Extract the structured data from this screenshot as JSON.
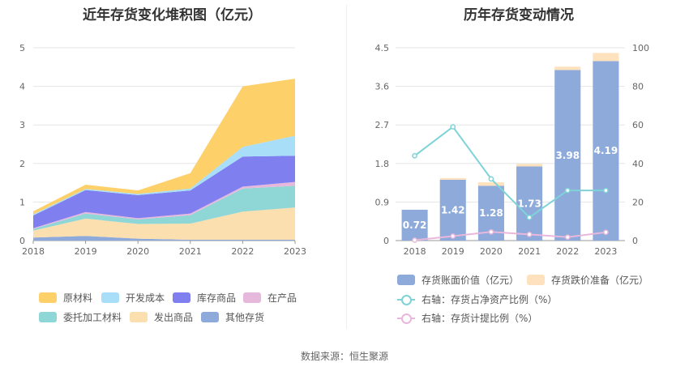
{
  "source": "数据来源：恒生聚源",
  "chart_data": [
    {
      "type": "area",
      "stacked": true,
      "title": "近年存货变化堆积图（亿元）",
      "x": [
        "2018",
        "2019",
        "2020",
        "2021",
        "2022",
        "2023"
      ],
      "ylim": [
        0,
        5
      ],
      "yticks": [
        0,
        1,
        2,
        3,
        4,
        5
      ],
      "grid": true,
      "legend_position": "bottom",
      "series": [
        {
          "name": "其他存货",
          "color": "#8eaadb",
          "values": [
            0.08,
            0.12,
            0.05,
            0.02,
            0.02,
            0.02
          ]
        },
        {
          "name": "发出商品",
          "color": "#fbdfae",
          "values": [
            0.18,
            0.45,
            0.38,
            0.42,
            0.73,
            0.84
          ]
        },
        {
          "name": "委托加工材料",
          "color": "#8fd6d6",
          "values": [
            0.04,
            0.13,
            0.12,
            0.22,
            0.6,
            0.56
          ]
        },
        {
          "name": "在产品",
          "color": "#e6b8dc",
          "values": [
            0.02,
            0.04,
            0.03,
            0.04,
            0.05,
            0.1
          ]
        },
        {
          "name": "库存商品",
          "color": "#7f7ff0",
          "values": [
            0.33,
            0.57,
            0.6,
            0.6,
            0.78,
            0.68
          ]
        },
        {
          "name": "开发成本",
          "color": "#a8def8",
          "values": [
            0.03,
            0.03,
            0.03,
            0.05,
            0.25,
            0.52
          ]
        },
        {
          "name": "原材料",
          "color": "#fdd06a",
          "values": [
            0.08,
            0.11,
            0.09,
            0.4,
            1.57,
            1.48
          ]
        }
      ]
    },
    {
      "type": "bar",
      "title": "历年存货变动情况",
      "categories": [
        "2018",
        "2019",
        "2020",
        "2021",
        "2022",
        "2023"
      ],
      "ylim": [
        0,
        4.5
      ],
      "yticks": [
        "0",
        "0.9",
        "1.8",
        "2.7",
        "3.6",
        "4.5"
      ],
      "y2lim": [
        0,
        100
      ],
      "y2ticks": [
        0,
        20,
        40,
        60,
        80,
        100
      ],
      "grid": true,
      "legend_position": "bottom",
      "bars": [
        {
          "name": "存货账面价值（亿元）",
          "color": "#8eaadb",
          "values": [
            0.72,
            1.42,
            1.28,
            1.73,
            3.98,
            4.19
          ],
          "labels": [
            "0.72",
            "1.42",
            "1.28",
            "1.73",
            "3.98",
            "4.19"
          ]
        },
        {
          "name": "存货跌价准备（亿元）",
          "color": "#fde2bd",
          "values": [
            0.0,
            0.04,
            0.08,
            0.06,
            0.08,
            0.19
          ]
        }
      ],
      "lines": [
        {
          "name": "右轴：存货占净资产比例（%）",
          "color": "#7fd3d8",
          "axis": "right",
          "values": [
            44,
            59,
            32,
            12,
            26,
            26
          ]
        },
        {
          "name": "右轴：存货计提比例（%）",
          "color": "#e9b7dc",
          "axis": "right",
          "values": [
            0.2,
            2.3,
            4.5,
            3.2,
            1.8,
            4.3
          ]
        }
      ]
    }
  ]
}
